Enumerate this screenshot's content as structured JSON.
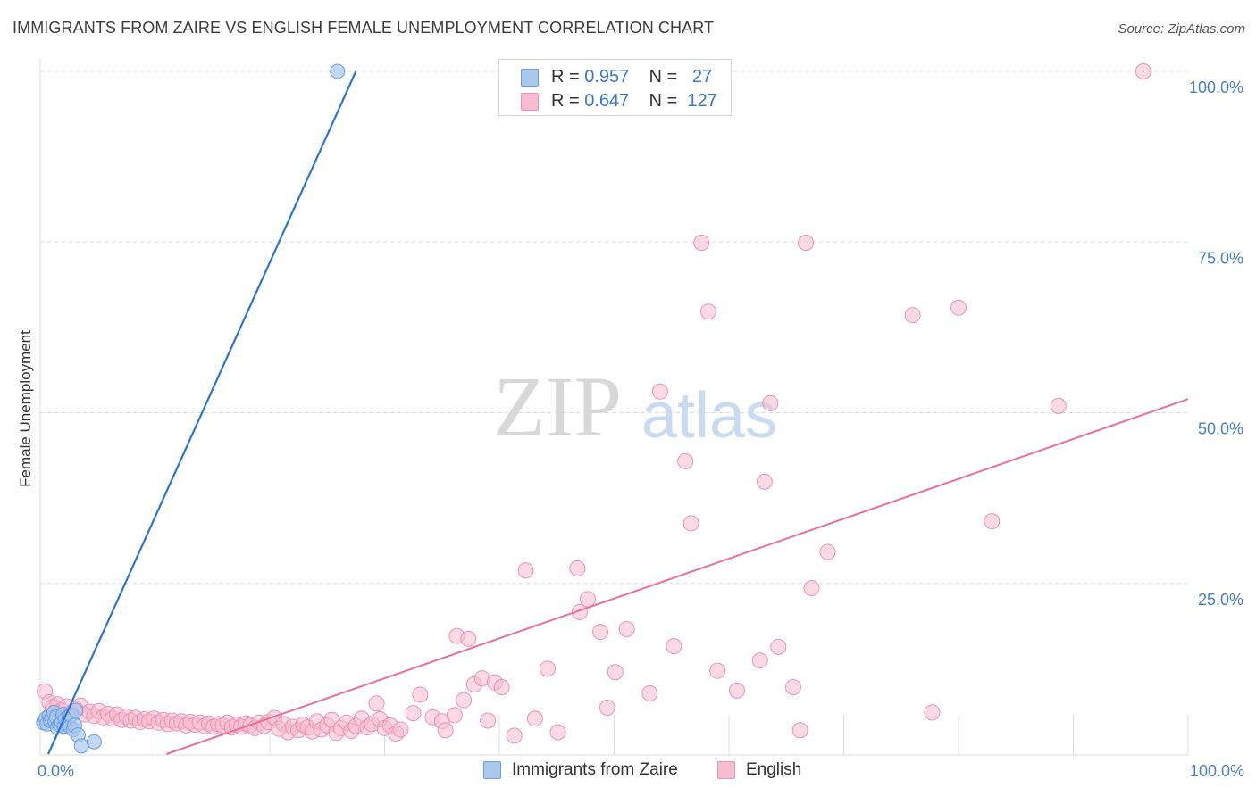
{
  "header": {
    "title": "IMMIGRANTS FROM ZAIRE VS ENGLISH FEMALE UNEMPLOYMENT CORRELATION CHART",
    "source": "Source: ZipAtlas.com"
  },
  "watermark": {
    "zip": "ZIP",
    "atlas": "atlas"
  },
  "legend": {
    "rows": [
      {
        "r_label": "R =",
        "r_value": "0.957",
        "n_label": "N =",
        "n_value": "27"
      },
      {
        "r_label": "R =",
        "r_value": "0.647",
        "n_label": "N =",
        "n_value": "127"
      }
    ]
  },
  "bottom_legend": {
    "series1": "Immigrants from Zaire",
    "series2": "English"
  },
  "colors": {
    "blue_fill": "#a9c8f0",
    "blue_stroke": "#6a9fdc",
    "blue_line": "#2e74cf",
    "pink_fill": "#f7bcd0",
    "pink_stroke": "#ec92b2",
    "pink_line": "#e8709a",
    "tick_text": "#4a80c8",
    "grid": "#dcdcdc"
  },
  "chart_data": {
    "type": "scatter",
    "title": "IMMIGRANTS FROM ZAIRE VS ENGLISH FEMALE UNEMPLOYMENT CORRELATION CHART",
    "xlabel": "",
    "ylabel": "Female Unemployment",
    "xlim": [
      0,
      100
    ],
    "ylim": [
      0,
      100
    ],
    "x_tick_labels": [
      "0.0%",
      "100.0%"
    ],
    "y_ticks": [
      25,
      50,
      75,
      100
    ],
    "y_tick_labels": [
      "25.0%",
      "50.0%",
      "75.0%",
      "100.0%"
    ],
    "grid": true,
    "series": [
      {
        "name": "Immigrants from Zaire",
        "R": 0.957,
        "N": 27,
        "trend": {
          "x": [
            0.7,
            27.5
          ],
          "y": [
            0,
            100
          ]
        },
        "points": [
          [
            0.3,
            4.6
          ],
          [
            0.5,
            5.2
          ],
          [
            0.6,
            4.4
          ],
          [
            0.8,
            5.6
          ],
          [
            0.9,
            4.9
          ],
          [
            1.0,
            5.3
          ],
          [
            1.2,
            6.1
          ],
          [
            1.3,
            4.8
          ],
          [
            1.4,
            5.4
          ],
          [
            1.5,
            3.9
          ],
          [
            1.7,
            4.3
          ],
          [
            1.8,
            5.0
          ],
          [
            1.9,
            4.7
          ],
          [
            2.0,
            5.8
          ],
          [
            2.1,
            4.1
          ],
          [
            2.2,
            5.1
          ],
          [
            2.4,
            4.5
          ],
          [
            2.5,
            5.5
          ],
          [
            2.6,
            4.0
          ],
          [
            2.7,
            5.7
          ],
          [
            2.9,
            3.6
          ],
          [
            3.0,
            4.2
          ],
          [
            3.1,
            6.4
          ],
          [
            3.3,
            2.8
          ],
          [
            3.6,
            1.2
          ],
          [
            4.7,
            1.8
          ],
          [
            25.9,
            100
          ]
        ]
      },
      {
        "name": "English",
        "R": 0.647,
        "N": 127,
        "trend": {
          "x": [
            11.0,
            100
          ],
          "y": [
            0,
            52
          ]
        },
        "points": [
          [
            0.4,
            9.2
          ],
          [
            0.8,
            7.6
          ],
          [
            1.1,
            6.9
          ],
          [
            1.5,
            7.3
          ],
          [
            1.9,
            6.4
          ],
          [
            2.3,
            7.0
          ],
          [
            2.7,
            6.0
          ],
          [
            3.1,
            6.6
          ],
          [
            3.5,
            7.1
          ],
          [
            3.9,
            5.8
          ],
          [
            4.3,
            6.2
          ],
          [
            4.7,
            5.6
          ],
          [
            5.1,
            6.3
          ],
          [
            5.5,
            5.4
          ],
          [
            5.9,
            5.9
          ],
          [
            6.3,
            5.2
          ],
          [
            6.7,
            5.8
          ],
          [
            7.1,
            5.0
          ],
          [
            7.5,
            5.5
          ],
          [
            7.9,
            4.9
          ],
          [
            8.3,
            5.3
          ],
          [
            8.7,
            4.7
          ],
          [
            9.1,
            5.1
          ],
          [
            9.5,
            4.8
          ],
          [
            9.9,
            5.2
          ],
          [
            10.3,
            4.6
          ],
          [
            10.7,
            5.0
          ],
          [
            11.1,
            4.4
          ],
          [
            11.5,
            4.9
          ],
          [
            11.9,
            4.5
          ],
          [
            12.3,
            4.8
          ],
          [
            12.7,
            4.2
          ],
          [
            13.1,
            4.7
          ],
          [
            13.5,
            4.3
          ],
          [
            13.9,
            4.6
          ],
          [
            14.3,
            4.1
          ],
          [
            14.7,
            4.5
          ],
          [
            15.1,
            4.0
          ],
          [
            15.5,
            4.4
          ],
          [
            15.9,
            4.2
          ],
          [
            16.3,
            4.6
          ],
          [
            16.7,
            3.9
          ],
          [
            17.1,
            4.3
          ],
          [
            17.5,
            4.0
          ],
          [
            17.9,
            4.5
          ],
          [
            18.3,
            4.2
          ],
          [
            18.7,
            3.8
          ],
          [
            19.1,
            4.6
          ],
          [
            19.5,
            4.1
          ],
          [
            19.9,
            4.7
          ],
          [
            20.4,
            5.3
          ],
          [
            20.8,
            3.7
          ],
          [
            21.2,
            4.4
          ],
          [
            21.6,
            3.2
          ],
          [
            22.0,
            4.0
          ],
          [
            22.5,
            3.5
          ],
          [
            22.9,
            4.3
          ],
          [
            23.3,
            3.9
          ],
          [
            23.7,
            3.3
          ],
          [
            24.1,
            4.8
          ],
          [
            24.5,
            3.6
          ],
          [
            25.0,
            4.2
          ],
          [
            25.4,
            5.0
          ],
          [
            25.8,
            3.1
          ],
          [
            26.2,
            3.8
          ],
          [
            26.7,
            4.6
          ],
          [
            27.1,
            3.4
          ],
          [
            27.5,
            4.1
          ],
          [
            28.0,
            5.2
          ],
          [
            28.5,
            3.9
          ],
          [
            28.9,
            4.4
          ],
          [
            29.3,
            7.4
          ],
          [
            29.6,
            5.1
          ],
          [
            30.0,
            3.8
          ],
          [
            30.5,
            4.2
          ],
          [
            31.0,
            3.0
          ],
          [
            31.4,
            3.6
          ],
          [
            36.3,
            17.3
          ],
          [
            37.3,
            16.9
          ],
          [
            32.5,
            6.0
          ],
          [
            33.1,
            8.7
          ],
          [
            34.2,
            5.4
          ],
          [
            35.0,
            4.8
          ],
          [
            35.3,
            3.5
          ],
          [
            36.1,
            5.7
          ],
          [
            36.9,
            7.9
          ],
          [
            37.8,
            10.2
          ],
          [
            38.5,
            11.1
          ],
          [
            39.0,
            4.9
          ],
          [
            39.6,
            10.5
          ],
          [
            40.2,
            9.8
          ],
          [
            41.3,
            2.7
          ],
          [
            42.3,
            26.9
          ],
          [
            43.1,
            5.2
          ],
          [
            44.2,
            12.5
          ],
          [
            45.1,
            3.2
          ],
          [
            46.8,
            27.2
          ],
          [
            47.0,
            20.8
          ],
          [
            47.7,
            22.7
          ],
          [
            48.8,
            17.9
          ],
          [
            49.4,
            6.8
          ],
          [
            50.1,
            12.0
          ],
          [
            51.1,
            18.3
          ],
          [
            53.1,
            8.9
          ],
          [
            54.0,
            53.1
          ],
          [
            56.2,
            42.9
          ],
          [
            55.2,
            15.8
          ],
          [
            56.7,
            33.8
          ],
          [
            57.6,
            74.9
          ],
          [
            58.2,
            64.8
          ],
          [
            59.0,
            12.2
          ],
          [
            60.7,
            9.3
          ],
          [
            62.7,
            13.7
          ],
          [
            63.1,
            39.9
          ],
          [
            63.6,
            51.4
          ],
          [
            64.3,
            15.7
          ],
          [
            65.6,
            9.8
          ],
          [
            66.2,
            3.5
          ],
          [
            66.7,
            74.9
          ],
          [
            67.2,
            24.3
          ],
          [
            68.6,
            29.6
          ],
          [
            76.0,
            64.3
          ],
          [
            80.0,
            65.4
          ],
          [
            82.9,
            34.1
          ],
          [
            88.7,
            51.0
          ],
          [
            96.1,
            100
          ],
          [
            77.7,
            6.1
          ]
        ]
      }
    ]
  }
}
